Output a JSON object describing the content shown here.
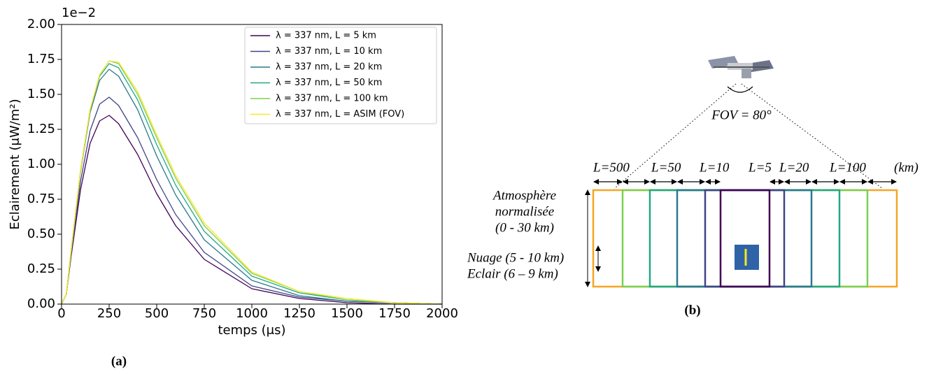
{
  "chart_data": {
    "type": "line",
    "x_label": "temps (μs)",
    "y_label": "Eclairement (μW/m²)",
    "y_offset_text": "1e−2",
    "caption": "(a)",
    "x": [
      0,
      25,
      50,
      100,
      150,
      200,
      250,
      300,
      400,
      500,
      600,
      750,
      1000,
      1250,
      1500,
      1750,
      2000
    ],
    "series": [
      {
        "name": "λ = 337 nm, L = 5 km",
        "color": "#440154",
        "values": [
          0,
          0.07,
          0.34,
          0.82,
          1.15,
          1.31,
          1.35,
          1.29,
          1.07,
          0.79,
          0.56,
          0.32,
          0.11,
          0.04,
          0.01,
          0.0,
          0.0
        ]
      },
      {
        "name": "λ = 337 nm, L = 10 km",
        "color": "#414487",
        "values": [
          0,
          0.07,
          0.36,
          0.88,
          1.24,
          1.43,
          1.48,
          1.42,
          1.19,
          0.89,
          0.64,
          0.37,
          0.13,
          0.05,
          0.02,
          0.01,
          0.0
        ]
      },
      {
        "name": "λ = 337 nm, L = 20 km",
        "color": "#2a788e",
        "values": [
          0,
          0.07,
          0.38,
          0.95,
          1.37,
          1.6,
          1.68,
          1.63,
          1.39,
          1.06,
          0.78,
          0.46,
          0.17,
          0.06,
          0.02,
          0.01,
          0.0
        ]
      },
      {
        "name": "λ = 337 nm, L = 50 km",
        "color": "#22a884",
        "values": [
          0,
          0.07,
          0.38,
          0.96,
          1.39,
          1.63,
          1.72,
          1.69,
          1.46,
          1.14,
          0.85,
          0.52,
          0.2,
          0.08,
          0.03,
          0.01,
          0.0
        ]
      },
      {
        "name": "λ = 337 nm, L = 100 km",
        "color": "#7ad151",
        "values": [
          0,
          0.07,
          0.38,
          0.96,
          1.39,
          1.64,
          1.74,
          1.72,
          1.5,
          1.19,
          0.9,
          0.56,
          0.22,
          0.09,
          0.03,
          0.01,
          0.0
        ]
      },
      {
        "name": "λ = 337 nm, L = ASIM (FOV)",
        "color": "#fde725",
        "values": [
          0,
          0.07,
          0.38,
          0.96,
          1.39,
          1.64,
          1.74,
          1.73,
          1.52,
          1.21,
          0.92,
          0.58,
          0.23,
          0.09,
          0.04,
          0.01,
          0.0
        ]
      }
    ],
    "xlim": [
      0,
      2000
    ],
    "xticks": [
      0,
      250,
      500,
      750,
      1000,
      1250,
      1500,
      1750,
      2000
    ],
    "ylim": [
      0,
      2
    ],
    "yticks": [
      {
        "value": 0,
        "label": "0.00"
      },
      {
        "value": 0.25,
        "label": "0.25"
      },
      {
        "value": 0.5,
        "label": "0.50"
      },
      {
        "value": 0.75,
        "label": "0.75"
      },
      {
        "value": 1,
        "label": "1.00"
      },
      {
        "value": 1.25,
        "label": "1.25"
      },
      {
        "value": 1.5,
        "label": "1.50"
      },
      {
        "value": 1.75,
        "label": "1.75"
      },
      {
        "value": 2,
        "label": "2.00"
      }
    ],
    "grid": false,
    "legend": "upper right"
  },
  "diagram": {
    "fov_label": "FOV = 80°",
    "distance_labels": [
      "L=500",
      "L=50",
      "L=10",
      "L=5",
      "L=20",
      "L=100"
    ],
    "unit": "(km)",
    "atmosphere_label": [
      "Atmosphère",
      "normalisée",
      "(0 - 30 km)"
    ],
    "cloud_label": "Nuage (5 - 10 km)",
    "lightning_label": "Eclair (6 – 9 km)",
    "caption": "(b)"
  }
}
